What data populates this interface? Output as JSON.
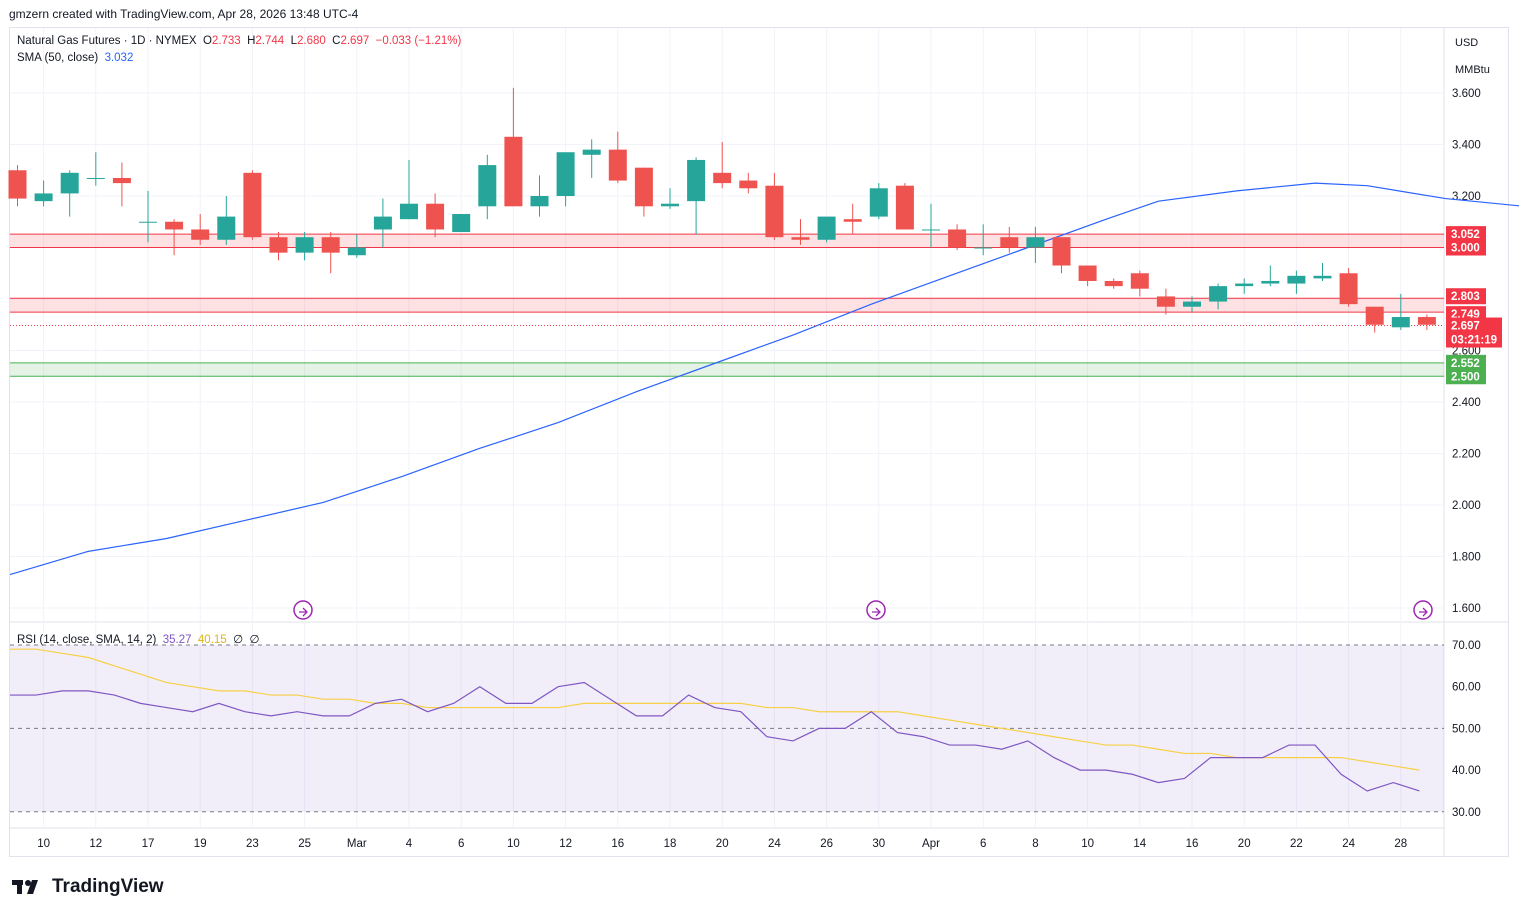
{
  "header": {
    "creator_line": "gmzern created with TradingView.com, Apr 28, 2026 13:48 UTC-4"
  },
  "legend": {
    "symbol": "Natural Gas Futures · 1D · NYMEX",
    "o_label": "O",
    "o": "2.733",
    "h_label": "H",
    "h": "2.744",
    "l_label": "L",
    "l": "2.680",
    "c_label": "C",
    "c": "2.697",
    "change": "−0.033 (−1.21%)",
    "sma_label": "SMA (50, close)",
    "sma_value": "3.032",
    "rsi_label": "RSI (14, close, SMA, 14, 2)",
    "rsi_value": "35.27",
    "rsi_ma": "40.15",
    "rsi_x1": "∅",
    "rsi_x2": "∅"
  },
  "price_axis": {
    "currency": "USD",
    "unit": "MMBtu",
    "ticks": [
      "3.600",
      "3.400",
      "3.200",
      "3.000",
      "2.800",
      "2.600",
      "2.400",
      "2.200",
      "2.000",
      "1.800",
      "1.600"
    ],
    "labels": [
      {
        "text": "3.052",
        "value": 3.052,
        "color": "#f23645"
      },
      {
        "text": "3.000",
        "value": 3.0,
        "color": "#f23645"
      },
      {
        "text": "2.803",
        "value": 2.803,
        "color": "#f23645"
      },
      {
        "text": "2.749",
        "value": 2.749,
        "color": "#f23645"
      },
      {
        "text": "2.697",
        "value": 2.697,
        "color": "#f23645"
      },
      {
        "text": "03:21:19",
        "value": 2.697,
        "color": "#f23645"
      },
      {
        "text": "2.552",
        "value": 2.552,
        "color": "#4caf50"
      },
      {
        "text": "2.500",
        "value": 2.5,
        "color": "#4caf50"
      }
    ]
  },
  "rsi_axis": {
    "ticks": [
      "70.00",
      "60.00",
      "50.00",
      "40.00",
      "30.00"
    ]
  },
  "x_axis": [
    "10",
    "12",
    "17",
    "19",
    "23",
    "25",
    "Mar",
    "4",
    "6",
    "10",
    "12",
    "16",
    "18",
    "20",
    "24",
    "26",
    "30",
    "Apr",
    "6",
    "8",
    "10",
    "14",
    "16",
    "20",
    "22",
    "24",
    "28"
  ],
  "colors": {
    "up": "#26a69a",
    "down": "#ef5350",
    "sma": "#2962ff",
    "rsi": "#7e57c2",
    "rsi_ma": "#f7d046",
    "resistance": "#f23645",
    "support": "#4caf50"
  },
  "footer": {
    "brand": "TradingView"
  },
  "chart_data": [
    {
      "type": "candlestick",
      "series_name": "Natural Gas Futures",
      "ohlc": [
        [
          3.3,
          3.32,
          3.16,
          3.19
        ],
        [
          3.18,
          3.26,
          3.16,
          3.21
        ],
        [
          3.21,
          3.3,
          3.12,
          3.29
        ],
        [
          3.27,
          3.37,
          3.24,
          3.27
        ],
        [
          3.27,
          3.33,
          3.16,
          3.25
        ],
        [
          3.1,
          3.22,
          3.02,
          3.1
        ],
        [
          3.1,
          3.11,
          2.97,
          3.07
        ],
        [
          3.07,
          3.13,
          3.01,
          3.03
        ],
        [
          3.03,
          3.2,
          3.01,
          3.12
        ],
        [
          3.29,
          3.3,
          3.03,
          3.04
        ],
        [
          3.04,
          3.06,
          2.95,
          2.98
        ],
        [
          2.98,
          3.06,
          2.95,
          3.04
        ],
        [
          3.04,
          3.06,
          2.9,
          2.98
        ],
        [
          2.97,
          3.05,
          2.96,
          3.0
        ],
        [
          3.07,
          3.19,
          3.0,
          3.12
        ],
        [
          3.11,
          3.34,
          3.11,
          3.17
        ],
        [
          3.17,
          3.21,
          3.04,
          3.07
        ],
        [
          3.06,
          3.13,
          3.06,
          3.13
        ],
        [
          3.16,
          3.36,
          3.11,
          3.32
        ],
        [
          3.43,
          3.62,
          3.16,
          3.16
        ],
        [
          3.16,
          3.28,
          3.12,
          3.2
        ],
        [
          3.2,
          3.37,
          3.16,
          3.37
        ],
        [
          3.36,
          3.42,
          3.27,
          3.38
        ],
        [
          3.38,
          3.45,
          3.25,
          3.26
        ],
        [
          3.31,
          3.31,
          3.12,
          3.16
        ],
        [
          3.16,
          3.23,
          3.15,
          3.17
        ],
        [
          3.18,
          3.35,
          3.05,
          3.34
        ],
        [
          3.29,
          3.41,
          3.23,
          3.25
        ],
        [
          3.26,
          3.29,
          3.21,
          3.23
        ],
        [
          3.24,
          3.29,
          3.03,
          3.04
        ],
        [
          3.04,
          3.11,
          3.01,
          3.03
        ],
        [
          3.03,
          3.12,
          3.02,
          3.12
        ],
        [
          3.11,
          3.17,
          3.05,
          3.1
        ],
        [
          3.12,
          3.25,
          3.11,
          3.23
        ],
        [
          3.24,
          3.25,
          3.07,
          3.07
        ],
        [
          3.07,
          3.17,
          3.0,
          3.07
        ],
        [
          3.07,
          3.09,
          2.99,
          3.0
        ],
        [
          3.0,
          3.09,
          2.97,
          3.0
        ],
        [
          3.04,
          3.08,
          2.98,
          3.0
        ],
        [
          3.0,
          3.08,
          2.94,
          3.04
        ],
        [
          3.04,
          3.04,
          2.9,
          2.93
        ],
        [
          2.93,
          2.93,
          2.85,
          2.87
        ],
        [
          2.87,
          2.88,
          2.84,
          2.85
        ],
        [
          2.9,
          2.91,
          2.81,
          2.84
        ],
        [
          2.81,
          2.84,
          2.74,
          2.77
        ],
        [
          2.77,
          2.81,
          2.75,
          2.79
        ],
        [
          2.79,
          2.86,
          2.76,
          2.85
        ],
        [
          2.85,
          2.88,
          2.82,
          2.86
        ],
        [
          2.86,
          2.93,
          2.85,
          2.87
        ],
        [
          2.86,
          2.91,
          2.82,
          2.89
        ],
        [
          2.88,
          2.94,
          2.87,
          2.89
        ],
        [
          2.9,
          2.92,
          2.77,
          2.78
        ],
        [
          2.77,
          2.77,
          2.67,
          2.7
        ],
        [
          2.69,
          2.82,
          2.68,
          2.73
        ],
        [
          2.73,
          2.74,
          2.68,
          2.7
        ]
      ],
      "sma_50": [
        [
          0,
          1.73
        ],
        [
          3,
          1.82
        ],
        [
          6,
          1.87
        ],
        [
          9,
          1.94
        ],
        [
          12,
          2.01
        ],
        [
          15,
          2.11
        ],
        [
          18,
          2.22
        ],
        [
          21,
          2.32
        ],
        [
          24,
          2.44
        ],
        [
          27,
          2.55
        ],
        [
          30,
          2.66
        ],
        [
          33,
          2.78
        ],
        [
          36,
          2.89
        ],
        [
          39,
          3.0
        ],
        [
          42,
          3.11
        ],
        [
          44,
          3.18
        ],
        [
          47,
          3.22
        ],
        [
          50,
          3.25
        ],
        [
          52,
          3.24
        ],
        [
          55,
          3.19
        ],
        [
          58,
          3.16
        ],
        [
          61,
          3.14
        ],
        [
          64,
          3.11
        ],
        [
          67,
          3.09
        ],
        [
          70,
          3.08
        ],
        [
          73,
          3.06
        ],
        [
          75,
          3.03
        ]
      ],
      "sma_x_note": "",
      "levels": {
        "resistance_upper": [
          3.0,
          3.052
        ],
        "resistance_lower": [
          2.749,
          2.803
        ],
        "support": [
          2.5,
          2.552
        ],
        "last_close": 2.697
      },
      "ylim": [
        1.56,
        3.74
      ]
    },
    {
      "type": "line",
      "series_name": "RSI (14, close, SMA, 14, 2)",
      "rsi": [
        58,
        58,
        59,
        59,
        58,
        56,
        55,
        54,
        56,
        54,
        53,
        54,
        53,
        53,
        56,
        57,
        54,
        56,
        60,
        56,
        56,
        60,
        61,
        57,
        53,
        53,
        58,
        55,
        54,
        48,
        47,
        50,
        50,
        54,
        49,
        48,
        46,
        46,
        45,
        47,
        43,
        40,
        40,
        39,
        37,
        38,
        43,
        43,
        43,
        46,
        46,
        39,
        35,
        37,
        35
      ],
      "rsi_ma": [
        69,
        69,
        68,
        67,
        65,
        63,
        61,
        60,
        59,
        59,
        58,
        58,
        57,
        57,
        56,
        56,
        55,
        55,
        55,
        55,
        55,
        55,
        56,
        56,
        56,
        56,
        56,
        56,
        56,
        55,
        55,
        54,
        54,
        54,
        54,
        53,
        52,
        51,
        50,
        49,
        48,
        47,
        46,
        46,
        45,
        44,
        44,
        43,
        43,
        43,
        43,
        43,
        42,
        41,
        40
      ],
      "ylim": [
        26,
        74
      ]
    }
  ]
}
